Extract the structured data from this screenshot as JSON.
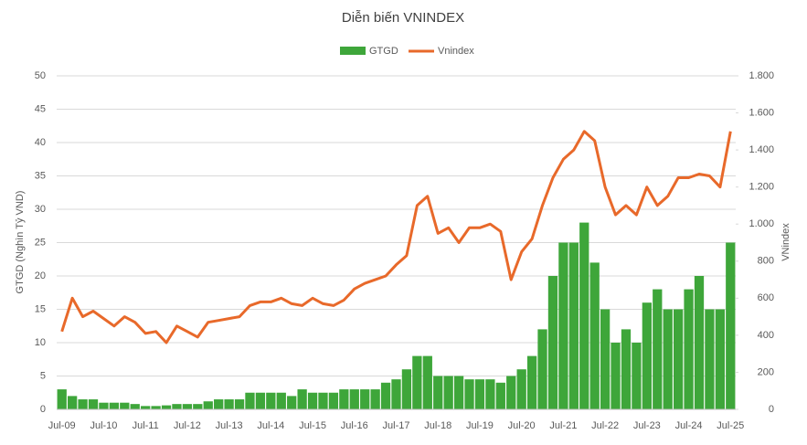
{
  "chart_data": {
    "type": "bar-line",
    "title": "Diễn biến VNINDEX",
    "y_label": "GTGD (Nghìn Tỷ VND)",
    "y2_label": "VNindex",
    "categories": [
      "Jul-09",
      null,
      null,
      null,
      "Jul-10",
      null,
      null,
      null,
      "Jul-11",
      null,
      null,
      null,
      "Jul-12",
      null,
      null,
      null,
      "Jul-13",
      null,
      null,
      null,
      "Jul-14",
      null,
      null,
      null,
      "Jul-15",
      null,
      null,
      null,
      "Jul-16",
      null,
      null,
      null,
      "Jul-17",
      null,
      null,
      null,
      "Jul-18",
      null,
      null,
      null,
      "Jul-19",
      null,
      null,
      null,
      "Jul-20",
      null,
      null,
      null,
      "Jul-21",
      null,
      null,
      null,
      "Jul-22",
      null,
      null,
      null,
      "Jul-23",
      null,
      null,
      null,
      "Jul-24",
      null,
      null,
      null,
      "Jul-25"
    ],
    "series": [
      {
        "name": "GTGD",
        "color": "#3ea63a",
        "kind": "bar",
        "axis": "y",
        "values": [
          3,
          2,
          1.5,
          1.5,
          1,
          1,
          1,
          0.8,
          0.5,
          0.5,
          0.6,
          0.8,
          0.8,
          0.8,
          1.2,
          1.5,
          1.5,
          1.5,
          2.5,
          2.5,
          2.5,
          2.5,
          2,
          3,
          2.5,
          2.5,
          2.5,
          3,
          3,
          3,
          3,
          4,
          4.5,
          6,
          8,
          8,
          5,
          5,
          5,
          4.5,
          4.5,
          4.5,
          4,
          5,
          6,
          8,
          12,
          20,
          25,
          25,
          28,
          22,
          15,
          10,
          12,
          10,
          16,
          18,
          15,
          15,
          18,
          20,
          15,
          15,
          25
        ]
      },
      {
        "name": "Vnindex",
        "color": "#e8692a",
        "kind": "line",
        "axis": "y2",
        "values": [
          420,
          600,
          500,
          530,
          490,
          450,
          500,
          470,
          410,
          420,
          360,
          450,
          420,
          390,
          470,
          480,
          490,
          500,
          560,
          580,
          580,
          600,
          570,
          560,
          600,
          570,
          560,
          590,
          650,
          680,
          700,
          720,
          780,
          830,
          1100,
          1150,
          950,
          980,
          900,
          980,
          980,
          1000,
          960,
          700,
          850,
          920,
          1100,
          1250,
          1350,
          1400,
          1500,
          1450,
          1200,
          1050,
          1100,
          1050,
          1200,
          1100,
          1150,
          1250,
          1250,
          1270,
          1260,
          1200,
          1500
        ]
      }
    ],
    "ylim": [
      0,
      50
    ],
    "yticks": [
      0,
      5,
      10,
      15,
      20,
      25,
      30,
      35,
      40,
      45,
      50
    ],
    "y2lim": [
      0,
      1800
    ],
    "y2ticks": [
      0,
      200,
      400,
      600,
      800,
      {
        "value": 1000,
        "label": "1.000"
      },
      {
        "value": 1200,
        "label": "1.200"
      },
      {
        "value": 1400,
        "label": "1.400"
      },
      {
        "value": 1600,
        "label": "1.600"
      },
      {
        "value": 1800,
        "label": "1.800"
      }
    ],
    "grid": true,
    "legend": "top"
  }
}
